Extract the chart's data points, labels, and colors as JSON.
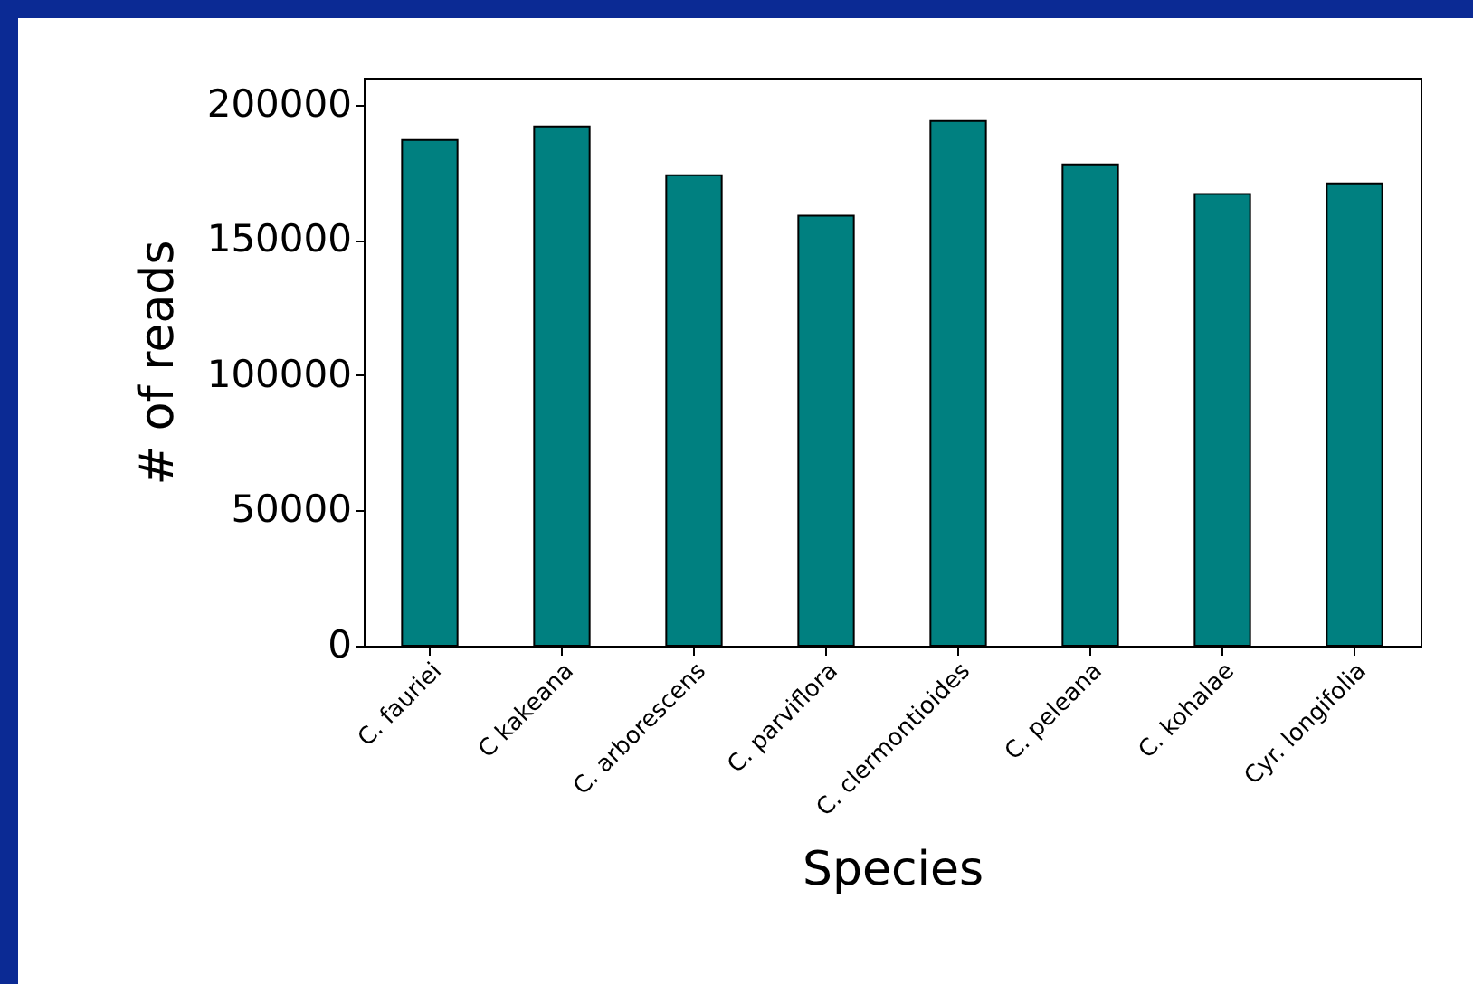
{
  "chart_data": {
    "type": "bar",
    "xlabel": "Species",
    "ylabel": "# of reads",
    "categories": [
      "C. fauriei",
      "C kakeana",
      "C. arborescens",
      "C. parviflora",
      "C. clermontioides",
      "C. peleana",
      "C. kohalae",
      "Cyr. longifolia"
    ],
    "values": [
      187000,
      192000,
      174000,
      159000,
      194000,
      178000,
      167000,
      171000
    ],
    "color": "#008080",
    "ylim": [
      0,
      210000
    ],
    "yticks": [
      0,
      50000,
      100000,
      150000,
      200000
    ],
    "grid": false
  }
}
